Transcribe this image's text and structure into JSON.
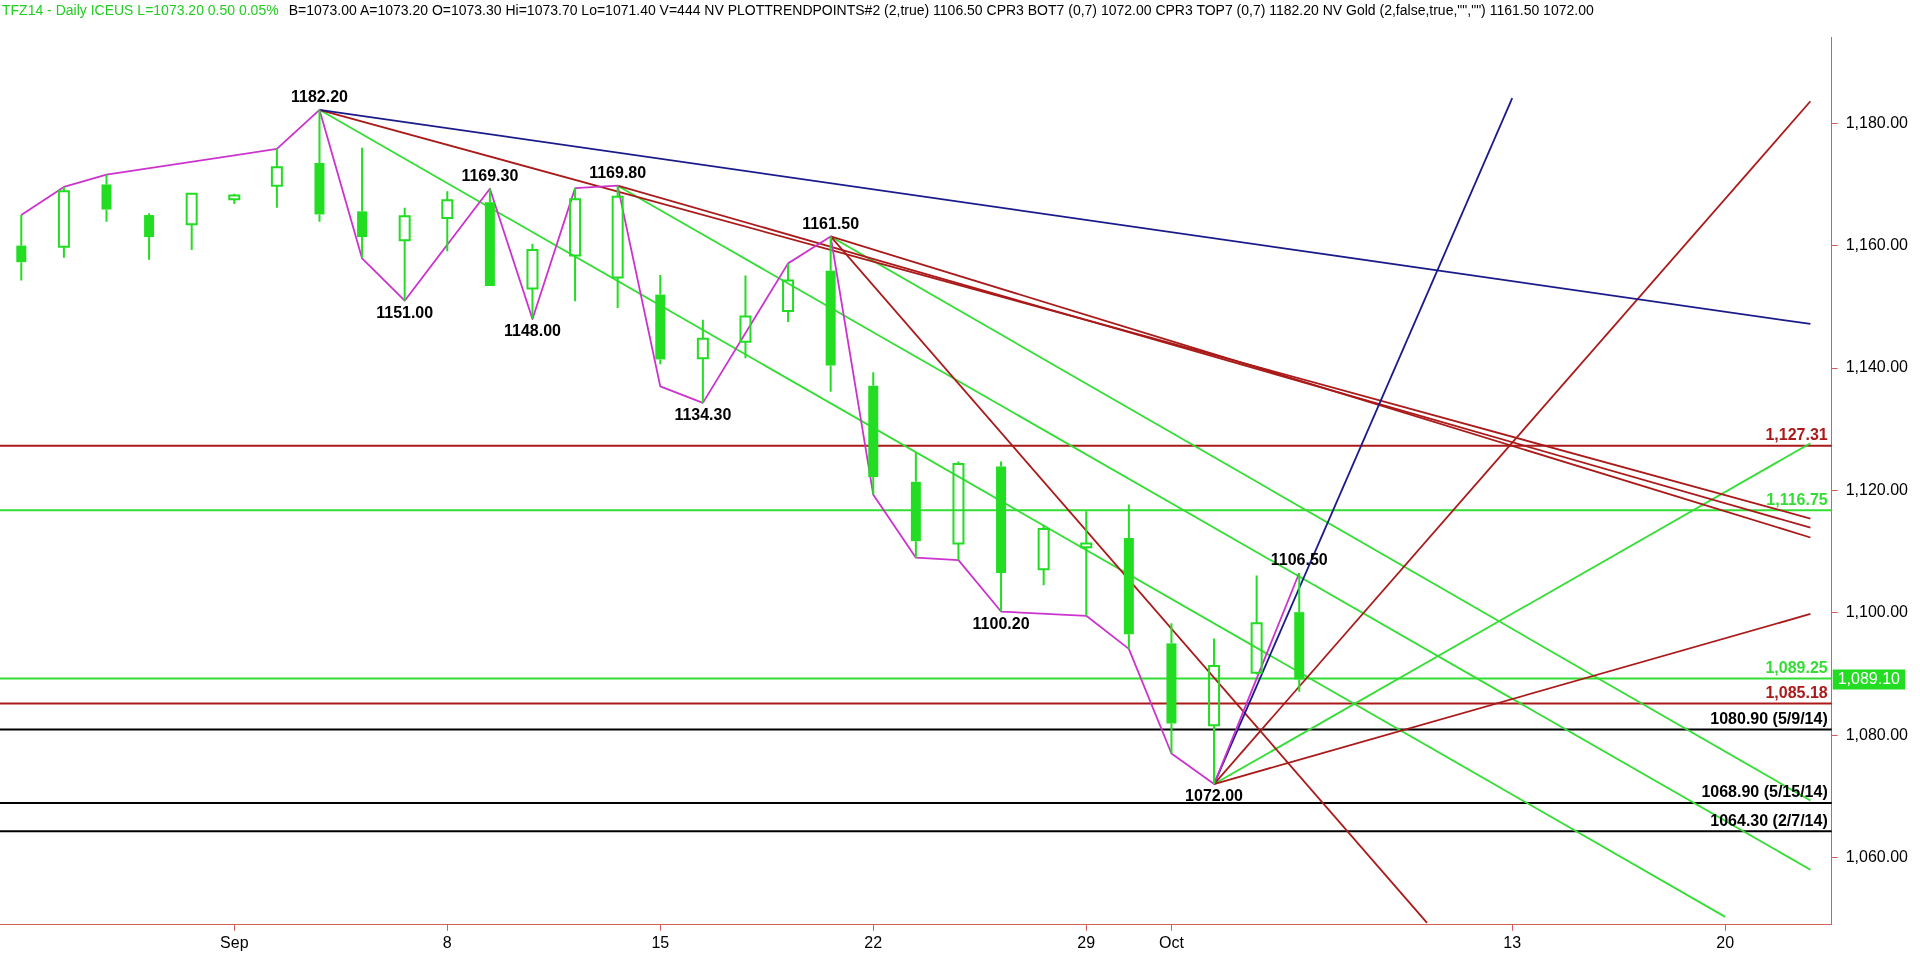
{
  "chart_data": {
    "type": "candlestick",
    "title": "TFZ14 - Daily  ICEUS  L=1073.20  0.50  0.05%",
    "subtitle": "B=1073.00  A=1073.20  O=1073.30  Hi=1073.70  Lo=1071.40  V=444  NV  PLOTTRENDPOINTS#2 (2,true)  1106.50  CPR3 BOT7 (0,7)  1072.00  CPR3 TOP7 (0,7)  1182.20  NV Gold (2,false,true,\"\",\"\")  1161.50  1072.00",
    "color": "#22dd22",
    "categories": [
      null,
      null,
      null,
      null,
      null,
      "Sep",
      null,
      null,
      null,
      null,
      "8",
      null,
      null,
      null,
      null,
      "15",
      null,
      null,
      null,
      null,
      "22",
      null,
      null,
      null,
      null,
      "29",
      null,
      "Oct",
      null,
      null,
      null,
      null,
      null,
      null,
      null,
      "13",
      null,
      null,
      null,
      null,
      "20",
      null,
      null
    ],
    "ohlc": [
      [
        1160,
        1165,
        1154.3,
        1157.3
      ],
      [
        1159.8,
        1169.6,
        1158,
        1168.9
      ],
      [
        1170,
        1171.6,
        1163.9,
        1165.9
      ],
      [
        1165,
        1165.3,
        1157.7,
        1161.4
      ],
      [
        1163.5,
        1168.5,
        1159.3,
        1168.5
      ],
      [
        1167.6,
        1168.5,
        1166.8,
        1168.2
      ],
      [
        1169.8,
        1175.8,
        1166.2,
        1172.8
      ],
      [
        1173.5,
        1182.2,
        1163.9,
        1165.1
      ],
      [
        1165.6,
        1176,
        1158,
        1161.4
      ],
      [
        1160.9,
        1166.2,
        1151,
        1164.8
      ],
      [
        1164.5,
        1168.9,
        1159.1,
        1167.4
      ],
      [
        1167.1,
        1169.3,
        1153.4,
        1153.4
      ],
      [
        1153,
        1160.3,
        1148,
        1159.3
      ],
      [
        1158.4,
        1169.4,
        1150.9,
        1167.6
      ],
      [
        1154.8,
        1169.8,
        1149.8,
        1168
      ],
      [
        1152,
        1155.2,
        1140.6,
        1141.4
      ],
      [
        1141.6,
        1147.9,
        1134.3,
        1144.8
      ],
      [
        1144.3,
        1155.1,
        1141.6,
        1148.4
      ],
      [
        1149.3,
        1157.1,
        1147.5,
        1154.3
      ],
      [
        1155.9,
        1161.5,
        1136.1,
        1140.4
      ],
      [
        1137.1,
        1139.3,
        1119.3,
        1122.2
      ],
      [
        1121.4,
        1126.1,
        1109,
        1111.7
      ],
      [
        1111.3,
        1124.7,
        1108.6,
        1124.3
      ],
      [
        1123.9,
        1124.7,
        1100.2,
        1106.5
      ],
      [
        1107.1,
        1114.4,
        1104.5,
        1113.7
      ],
      [
        1110.7,
        1116.6,
        1099.5,
        1111.3
      ],
      [
        1112.2,
        1117.7,
        1094.1,
        1096.5
      ],
      [
        1095,
        1098.3,
        1077,
        1081.9
      ],
      [
        1081.6,
        1095.8,
        1072,
        1091.3
      ],
      [
        1090.2,
        1106.1,
        1089.9,
        1098.3
      ],
      [
        1100.1,
        1106.5,
        1087.1,
        1089.1
      ],
      null,
      null,
      null,
      null,
      null,
      null,
      null,
      null,
      null,
      null,
      null,
      null
    ],
    "series": [
      {
        "type": "line",
        "color": "#cc33cc",
        "values": [
          1165,
          1169.6,
          1171.6,
          null,
          null,
          null,
          1175.8,
          1182.2,
          1157.9,
          1151,
          null,
          1169.3,
          1148,
          1169.4,
          1169.8,
          1137,
          1134.3,
          null,
          1157.1,
          1161.5,
          1119.3,
          1109,
          1108.6,
          1100.2,
          null,
          1099.5,
          1094.1,
          1077,
          1072,
          null,
          1106.5,
          null,
          null,
          null,
          null,
          null,
          null,
          null,
          null,
          null,
          null,
          null,
          null
        ],
        "value_labels": [
          null,
          null,
          null,
          null,
          null,
          null,
          null,
          "1182.20",
          null,
          "1151.00",
          null,
          "1169.30",
          "1148.00",
          null,
          "1169.80",
          null,
          "1134.30",
          null,
          null,
          "1161.50",
          null,
          null,
          null,
          "1100.20",
          null,
          null,
          null,
          null,
          "1072.00",
          null,
          "1106.50",
          null,
          null,
          null,
          null,
          null,
          null,
          null,
          null,
          null,
          null,
          null,
          null
        ]
      },
      {
        "type": "line",
        "color": "#1a1a8a",
        "values": [
          null,
          null,
          null,
          null,
          null,
          null,
          null,
          1182.2,
          null,
          null,
          null,
          null,
          null,
          null,
          null,
          null,
          null,
          null,
          null,
          null,
          null,
          null,
          null,
          null,
          null,
          null,
          null,
          null,
          null,
          null,
          null,
          null,
          null,
          null,
          null,
          null,
          null,
          null,
          null,
          null,
          null,
          null,
          1147.2
        ]
      },
      {
        "type": "line",
        "color": "#1a1a8a",
        "values": [
          null,
          null,
          null,
          null,
          null,
          null,
          null,
          null,
          null,
          null,
          null,
          null,
          null,
          null,
          null,
          null,
          null,
          null,
          null,
          null,
          null,
          null,
          null,
          null,
          null,
          null,
          null,
          null,
          1072,
          null,
          null,
          null,
          null,
          null,
          null,
          1184.1,
          null,
          null,
          null,
          null,
          null,
          null,
          null
        ]
      },
      {
        "type": "line",
        "color": "#aa1a1a",
        "values": [
          null,
          null,
          null,
          null,
          null,
          null,
          null,
          1182.2,
          null,
          null,
          null,
          null,
          null,
          null,
          null,
          null,
          null,
          null,
          null,
          null,
          null,
          null,
          null,
          null,
          null,
          null,
          null,
          null,
          null,
          null,
          null,
          null,
          null,
          null,
          null,
          null,
          null,
          null,
          null,
          null,
          null,
          null,
          1115.4
        ]
      },
      {
        "type": "line",
        "color": "#aa1a1a",
        "values": [
          null,
          null,
          null,
          null,
          null,
          null,
          null,
          null,
          null,
          null,
          null,
          null,
          null,
          null,
          1169.8,
          null,
          null,
          null,
          null,
          null,
          null,
          null,
          null,
          null,
          null,
          null,
          null,
          null,
          null,
          null,
          null,
          null,
          null,
          null,
          null,
          null,
          null,
          null,
          null,
          null,
          null,
          null,
          1113.9
        ]
      },
      {
        "type": "line",
        "color": "#aa1a1a",
        "values": [
          null,
          null,
          null,
          null,
          null,
          null,
          null,
          null,
          null,
          null,
          null,
          null,
          null,
          null,
          null,
          null,
          null,
          null,
          null,
          1161.5,
          null,
          null,
          null,
          null,
          null,
          null,
          null,
          null,
          null,
          null,
          null,
          null,
          null,
          null,
          null,
          null,
          null,
          null,
          null,
          null,
          null,
          null,
          1112.3
        ]
      },
      {
        "type": "line",
        "color": "#aa1a1a",
        "values": [
          null,
          null,
          null,
          null,
          null,
          null,
          null,
          null,
          null,
          null,
          null,
          null,
          null,
          null,
          null,
          null,
          null,
          null,
          null,
          1161.5,
          null,
          null,
          null,
          null,
          null,
          null,
          null,
          null,
          null,
          null,
          null,
          null,
          null,
          1049.3,
          null,
          null,
          null,
          null,
          null,
          null,
          null,
          null,
          null
        ]
      },
      {
        "type": "line",
        "color": "#aa1a1a",
        "values": [
          null,
          null,
          null,
          null,
          null,
          null,
          null,
          null,
          null,
          null,
          null,
          null,
          null,
          null,
          null,
          null,
          null,
          null,
          null,
          null,
          null,
          null,
          null,
          null,
          null,
          null,
          null,
          null,
          1072,
          null,
          null,
          null,
          null,
          null,
          null,
          null,
          null,
          null,
          null,
          null,
          null,
          null,
          1183.6
        ]
      },
      {
        "type": "line",
        "color": "#aa1a1a",
        "values": [
          null,
          null,
          null,
          null,
          null,
          null,
          null,
          null,
          null,
          null,
          null,
          null,
          null,
          null,
          null,
          null,
          null,
          null,
          null,
          null,
          null,
          null,
          null,
          null,
          null,
          null,
          null,
          null,
          1072,
          null,
          null,
          null,
          null,
          null,
          null,
          null,
          null,
          null,
          null,
          null,
          null,
          null,
          1099.8
        ]
      },
      {
        "type": "line",
        "color": "#33dd33",
        "values": [
          null,
          null,
          null,
          null,
          null,
          null,
          null,
          1182.2,
          null,
          null,
          null,
          null,
          null,
          null,
          null,
          null,
          null,
          null,
          null,
          null,
          null,
          null,
          null,
          null,
          null,
          null,
          null,
          null,
          null,
          null,
          null,
          null,
          null,
          null,
          null,
          null,
          null,
          null,
          null,
          null,
          1050.3,
          null,
          null
        ]
      },
      {
        "type": "line",
        "color": "#33dd33",
        "values": [
          null,
          null,
          null,
          null,
          null,
          null,
          null,
          null,
          null,
          null,
          null,
          null,
          null,
          null,
          1169.8,
          null,
          null,
          null,
          null,
          null,
          null,
          null,
          null,
          null,
          null,
          null,
          null,
          null,
          null,
          null,
          null,
          null,
          null,
          null,
          null,
          null,
          null,
          null,
          null,
          null,
          null,
          null,
          1058.0
        ]
      },
      {
        "type": "line",
        "color": "#33dd33",
        "values": [
          null,
          null,
          null,
          null,
          null,
          null,
          null,
          null,
          null,
          null,
          null,
          null,
          null,
          null,
          null,
          null,
          null,
          null,
          null,
          1161.5,
          null,
          null,
          null,
          null,
          null,
          null,
          null,
          null,
          null,
          null,
          null,
          null,
          null,
          null,
          null,
          null,
          null,
          null,
          null,
          null,
          null,
          null,
          1069.3
        ]
      },
      {
        "type": "line",
        "color": "#33dd33",
        "values": [
          null,
          null,
          null,
          null,
          null,
          null,
          null,
          null,
          null,
          null,
          null,
          null,
          null,
          null,
          null,
          null,
          null,
          null,
          null,
          null,
          null,
          null,
          null,
          null,
          null,
          null,
          null,
          null,
          1072,
          null,
          null,
          null,
          null,
          null,
          null,
          null,
          null,
          null,
          null,
          null,
          null,
          null,
          1127.7
        ]
      }
    ],
    "ref_lines": [
      {
        "axis": "y",
        "value": 1127.31,
        "label": "1,127.31",
        "color": "#aa1a1a"
      },
      {
        "axis": "y",
        "value": 1116.75,
        "label": "1,116.75",
        "color": "#33dd33"
      },
      {
        "axis": "y",
        "value": 1089.25,
        "label": "1,089.25",
        "color": "#33dd33"
      },
      {
        "axis": "y",
        "value": 1085.18,
        "label": "1,085.18",
        "color": "#aa1a1a"
      },
      {
        "axis": "y",
        "value": 1080.9,
        "label": "1080.90 (5/9/14)",
        "color": "#000000"
      },
      {
        "axis": "y",
        "value": 1068.9,
        "label": "1068.90 (5/15/14)",
        "color": "#000000"
      },
      {
        "axis": "y",
        "value": 1064.3,
        "label": "1064.30 (2/7/14)",
        "color": "#000000"
      }
    ],
    "annotations": [
      "1,089.10"
    ],
    "ylim": [
      1049,
      1194
    ],
    "yticks": [
      {
        "value": 1060,
        "label": "1,060.00"
      },
      {
        "value": 1080,
        "label": "1,080.00"
      },
      {
        "value": 1100,
        "label": "1,100.00"
      },
      {
        "value": 1120,
        "label": "1,120.00"
      },
      {
        "value": 1140,
        "label": "1,140.00"
      },
      {
        "value": 1160,
        "label": "1,160.00"
      },
      {
        "value": 1180,
        "label": "1,180.00"
      }
    ],
    "legend": false
  }
}
